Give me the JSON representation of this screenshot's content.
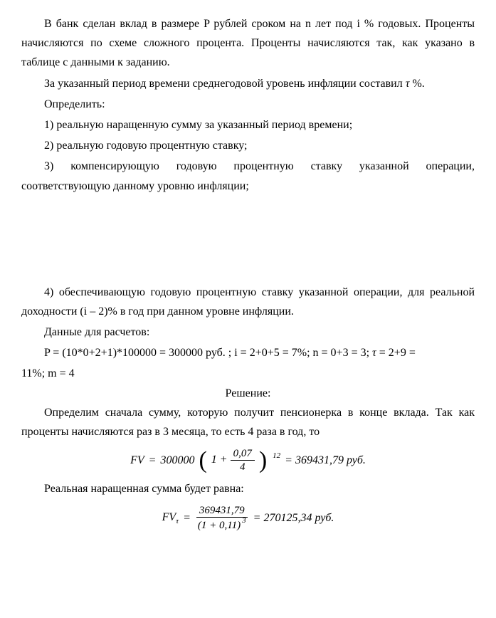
{
  "p1": "В банк сделан вклад в размере  P рублей сроком на  n лет под  i % годовых. Проценты начисляются по схеме сложного процента. Проценты начисляются так, как указано в таблице с данными к заданию.",
  "p2_prefix": "За указанный период времени среднегодовой уровень инфляции составил ",
  "p2_tau": "τ",
  "p2_suffix": " %.",
  "p3": "Определить:",
  "item1": "1) реальную наращенную сумму за указанный период времени;",
  "item2": "2) реальную годовую процентную ставку;",
  "item3": "3) компенсирующую годовую процентную ставку указанной операции, соответствующую данному уровню инфляции;",
  "item4": "4) обеспечивающую годовую процентную ставку указанной операции, для реальной доходности  (i – 2)%  в год при данном уровне инфляции.",
  "data_label": "Данные для расчетов:",
  "data_line_prefix": "P = (10*0+2+1)*100000 = 300000 руб. ; i = 2+0+5 = 7%; n = 0+3 = 3; ",
  "data_tau": "τ",
  "data_line_mid": " = 2+9 = ",
  "data_line_suffix": "11%; m = 4",
  "solution_header": "Решение:",
  "solution_p1": "Определим сначала сумму, которую получит пенсионерка в конце вклада. Так как проценты начисляются раз в 3 месяца, то есть 4 раза в год, то",
  "formula1": {
    "lhs_var": "FV",
    "equals": " = ",
    "coef": "300000",
    "inner_prefix": "1 + ",
    "frac_num": "0,07",
    "frac_den": "4",
    "exponent": "12",
    "result": " = 369431,79 руб."
  },
  "real_sum_label": "Реальная наращенная сумма будет равна:",
  "formula2": {
    "lhs_var": "FV",
    "lhs_sub": "τ",
    "equals": " = ",
    "frac_num": "369431,79",
    "frac_den": "(1 + 0,11)",
    "den_exp": "3",
    "result": " = 270125,34 руб."
  }
}
